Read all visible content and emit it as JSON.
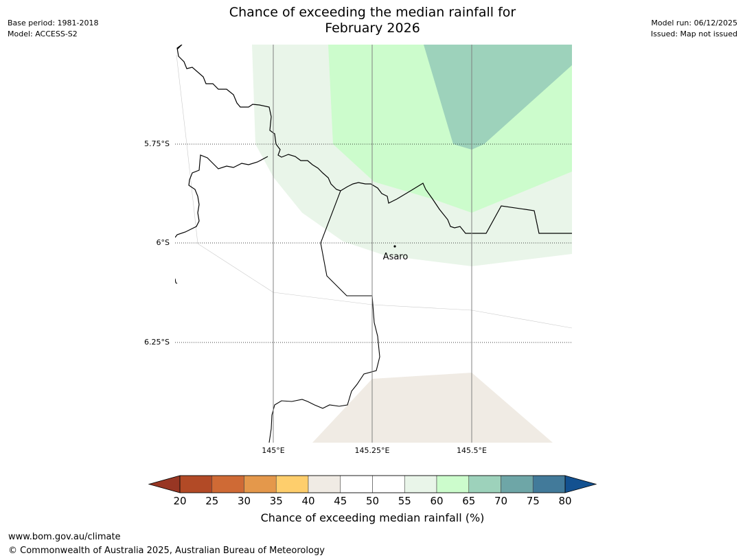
{
  "title": {
    "line1": "Chance of exceeding the median rainfall for",
    "line2": "February 2026"
  },
  "meta_left": {
    "base_period": "Base period: 1981-2018",
    "model": "Model: ACCESS-S2"
  },
  "meta_right": {
    "model_run": "Model run: 06/12/2025",
    "issued": "Issued: Map not issued"
  },
  "map": {
    "lat_labels": [
      "5.75°S",
      "6°S",
      "6.25°S"
    ],
    "lon_labels": [
      "145°E",
      "145.25°E",
      "145.5°E"
    ],
    "place_label": "Asaro",
    "colors": {
      "band_55_60": "#e9f5e9",
      "band_60_65": "#ccfccc",
      "band_65_70": "#9dd2bb",
      "band_40_45": "#f0ebe4",
      "coast": "#000000",
      "grid": "#808080"
    }
  },
  "colorbar": {
    "title": "Chance of exceeding median rainfall (%)",
    "tick_labels": [
      "20",
      "25",
      "30",
      "35",
      "40",
      "45",
      "50",
      "55",
      "60",
      "65",
      "70",
      "75",
      "80"
    ],
    "colors": [
      "#b24a26",
      "#cf6a35",
      "#e4984b",
      "#fece6c",
      "#f0ebe4",
      "#ffffff",
      "#ffffff",
      "#e9f5e9",
      "#ccfccc",
      "#9dd2bb",
      "#6ea6a7",
      "#427a9a"
    ],
    "under_color": "#983623",
    "over_color": "#135190"
  },
  "footer": {
    "url": "www.bom.gov.au/climate",
    "copyright": "© Commonwealth of Australia 2025, Australian Bureau of Meteorology"
  }
}
